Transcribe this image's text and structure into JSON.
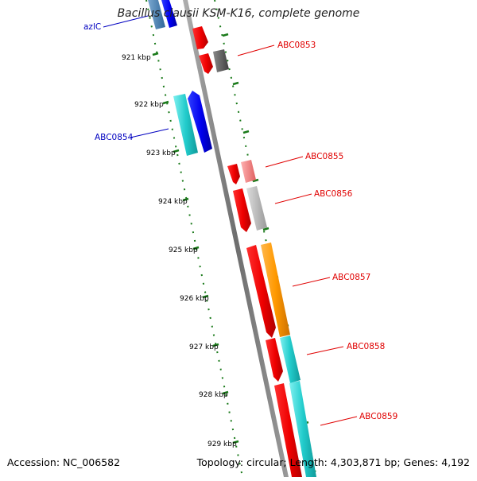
{
  "title": "Bacillus clausii KSM-K16, complete genome",
  "accession": "Accession: NC_006582",
  "summary": "Topology: circular; Length: 4,303,871 bp; Genes: 4,192",
  "colors": {
    "backbone": "#808080",
    "tick": "#1a7a1a",
    "gene_label_forward": "#e00000",
    "gene_label_reverse": "#0000c0",
    "cds_forward": "#ff0000",
    "cds_reverse": "#0000ff",
    "cyan": "#22cccc",
    "orange": "#ff9900",
    "pink": "#f08080",
    "dark_gray": "#555555",
    "light_gray": "#b8b8b8",
    "steel_blue": "#4682b4"
  },
  "scale_labels": [
    "921 kbp",
    "922 kbp",
    "923 kbp",
    "924 kbp",
    "925 kbp",
    "926 kbp",
    "927 kbp",
    "928 kbp",
    "929 kbp"
  ],
  "gene_labels": [
    {
      "id": "azlC",
      "text": "azlC",
      "strand": "reverse"
    },
    {
      "id": "ABC0853",
      "text": "ABC0853",
      "strand": "forward"
    },
    {
      "id": "ABC0854",
      "text": "ABC0854",
      "strand": "reverse"
    },
    {
      "id": "ABC0855",
      "text": "ABC0855",
      "strand": "forward"
    },
    {
      "id": "ABC0856",
      "text": "ABC0856",
      "strand": "forward"
    },
    {
      "id": "ABC0857",
      "text": "ABC0857",
      "strand": "forward"
    },
    {
      "id": "ABC0858",
      "text": "ABC0858",
      "strand": "forward"
    },
    {
      "id": "ABC0859",
      "text": "ABC0859",
      "strand": "forward"
    }
  ]
}
